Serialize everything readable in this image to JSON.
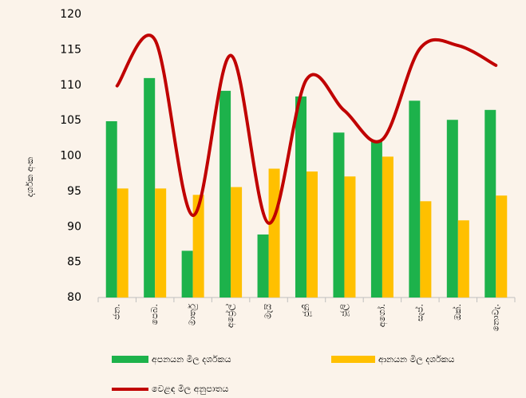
{
  "chart_data": {
    "type": "bar-line",
    "y_axis_label": "දර්ශක අංක",
    "categories": [
      "ජන.",
      "පෙබ.",
      "මාර්තු",
      "අප්‍රේල්",
      "මැයි",
      "ජූනි",
      "ජූලි",
      "අගෝ.",
      "සැප්.",
      "ඔක්.",
      "නොවැ."
    ],
    "series": [
      {
        "name": "අපනයන මිල දර්ශකය",
        "type": "bar",
        "color": "#1db24b",
        "values": [
          104.9,
          111.0,
          86.6,
          109.2,
          88.9,
          108.4,
          103.3,
          102.2,
          107.8,
          105.1,
          106.5
        ]
      },
      {
        "name": "ආනයන මිල දර්ශකය",
        "type": "bar",
        "color": "#ffc000",
        "values": [
          95.4,
          95.4,
          94.5,
          95.6,
          98.2,
          97.8,
          97.1,
          99.9,
          93.6,
          90.9,
          94.4
        ]
      },
      {
        "name": "වෙළඳ මිල අනුපාතය",
        "type": "line",
        "color": "#c00000",
        "values": [
          109.9,
          116.4,
          91.6,
          114.2,
          90.5,
          110.8,
          106.4,
          102.3,
          115.2,
          115.6,
          112.8
        ]
      }
    ],
    "ylim": [
      80,
      120
    ],
    "yticks": [
      80,
      85,
      90,
      95,
      100,
      105,
      110,
      115,
      120
    ],
    "grid": false
  }
}
